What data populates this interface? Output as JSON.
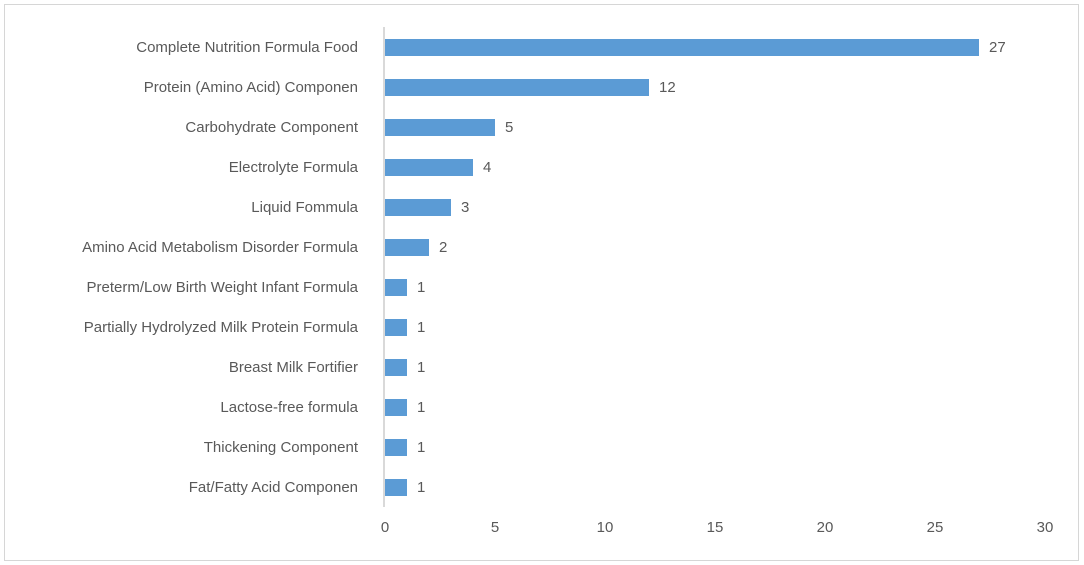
{
  "colors": {
    "bar": "#5B9BD5",
    "axis_line": "#D9D9D9",
    "text": "#595959",
    "frame_border": "#D6D6D6"
  },
  "chart_data": {
    "type": "bar",
    "orientation": "horizontal",
    "title": "",
    "xlabel": "",
    "ylabel": "",
    "categories": [
      "Complete Nutrition Formula Food",
      "Protein (Amino Acid) Componen",
      "Carbohydrate Component",
      "Electrolyte Formula",
      "Liquid Fommula",
      "Amino Acid Metabolism Disorder Formula",
      "Preterm/Low Birth Weight Infant Formula",
      "Partially Hydrolyzed Milk Protein Formula",
      "Breast Milk Fortifier",
      "Lactose-free formula",
      "Thickening Component",
      "Fat/Fatty Acid Componen"
    ],
    "values": [
      27,
      12,
      5,
      4,
      3,
      2,
      1,
      1,
      1,
      1,
      1,
      1
    ],
    "data_labels": [
      27,
      12,
      5,
      4,
      3,
      2,
      1,
      1,
      1,
      1,
      1,
      1
    ],
    "xlim": [
      0,
      30
    ],
    "xticks": [
      0,
      5,
      10,
      15,
      20,
      25,
      30
    ],
    "grid": false,
    "legend": null,
    "bar_color": "#5B9BD5"
  }
}
